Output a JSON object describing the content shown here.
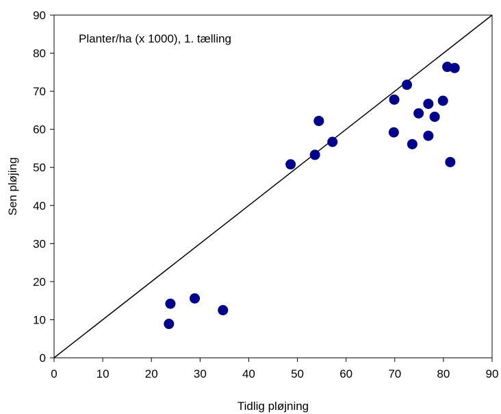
{
  "chart_data": {
    "type": "scatter",
    "annotation": "Planter/ha (x 1000), 1. tælling",
    "xlabel": "Tidlig pløjning",
    "ylabel": "Sen pløjing",
    "xlim": [
      0,
      90
    ],
    "ylim": [
      0,
      90
    ],
    "xticks": [
      0,
      10,
      20,
      30,
      40,
      50,
      60,
      70,
      80,
      90
    ],
    "yticks": [
      0,
      10,
      20,
      30,
      40,
      50,
      60,
      70,
      80,
      90
    ],
    "grid": false,
    "reference_line": {
      "from": [
        0,
        0
      ],
      "to": [
        90,
        90
      ]
    },
    "marker_color": "#00008B",
    "series": [
      {
        "points": [
          {
            "x": 23.6,
            "y": 8.9
          },
          {
            "x": 23.9,
            "y": 14.2
          },
          {
            "x": 28.9,
            "y": 15.6
          },
          {
            "x": 34.7,
            "y": 12.5
          },
          {
            "x": 48.6,
            "y": 50.8
          },
          {
            "x": 53.6,
            "y": 53.3
          },
          {
            "x": 54.4,
            "y": 62.2
          },
          {
            "x": 57.2,
            "y": 56.7
          },
          {
            "x": 69.8,
            "y": 59.2
          },
          {
            "x": 69.9,
            "y": 67.8
          },
          {
            "x": 72.5,
            "y": 71.7
          },
          {
            "x": 73.6,
            "y": 56.1
          },
          {
            "x": 74.9,
            "y": 64.2
          },
          {
            "x": 76.9,
            "y": 58.3
          },
          {
            "x": 76.9,
            "y": 66.7
          },
          {
            "x": 78.2,
            "y": 63.3
          },
          {
            "x": 79.9,
            "y": 67.5
          },
          {
            "x": 80.8,
            "y": 76.4
          },
          {
            "x": 81.4,
            "y": 51.4
          },
          {
            "x": 82.3,
            "y": 76.1
          }
        ]
      }
    ]
  }
}
